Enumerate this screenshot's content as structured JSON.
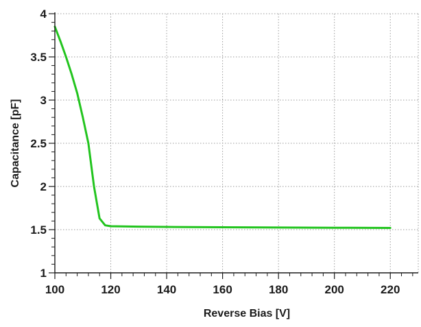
{
  "chart_data": {
    "type": "line",
    "title": "",
    "xlabel": "Reverse Bias [V]",
    "ylabel": "Capacitance [pF]",
    "xlim": [
      100,
      230
    ],
    "ylim": [
      1,
      4
    ],
    "x_ticks": [
      "100",
      "120",
      "140",
      "160",
      "180",
      "200",
      "220"
    ],
    "y_ticks": [
      "1",
      "1.5",
      "2",
      "2.5",
      "3",
      "3.5",
      "4"
    ],
    "grid": true,
    "legend": "none",
    "series": [
      {
        "color": "#22c41e",
        "x": [
          100,
          102,
          104,
          106,
          108,
          110,
          112,
          114,
          116,
          118,
          120,
          130,
          140,
          160,
          180,
          200,
          220
        ],
        "y": [
          3.85,
          3.68,
          3.5,
          3.3,
          3.08,
          2.8,
          2.5,
          2.0,
          1.63,
          1.55,
          1.54,
          1.535,
          1.532,
          1.528,
          1.525,
          1.522,
          1.52
        ]
      }
    ]
  }
}
